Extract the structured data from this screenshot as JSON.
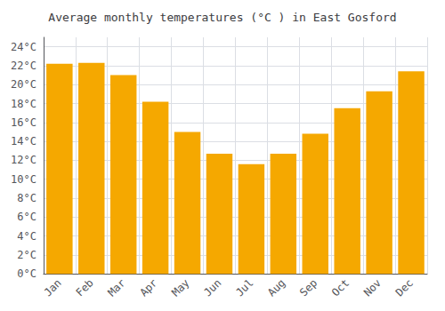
{
  "chart_data": {
    "type": "bar",
    "title": "Average monthly temperatures (°C ) in East Gosford",
    "categories": [
      "Jan",
      "Feb",
      "Mar",
      "Apr",
      "May",
      "Jun",
      "Jul",
      "Aug",
      "Sep",
      "Oct",
      "Nov",
      "Dec"
    ],
    "values": [
      22.2,
      22.3,
      21.0,
      18.2,
      15.0,
      12.7,
      11.6,
      12.7,
      14.8,
      17.5,
      19.3,
      21.4
    ],
    "color": "#F5A800",
    "ylim": [
      0,
      25
    ],
    "yticks": [
      {
        "value": 0,
        "label": "0°C"
      },
      {
        "value": 2,
        "label": "2°C"
      },
      {
        "value": 4,
        "label": "4°C"
      },
      {
        "value": 6,
        "label": "6°C"
      },
      {
        "value": 8,
        "label": "8°C"
      },
      {
        "value": 10,
        "label": "10°C"
      },
      {
        "value": 12,
        "label": "12°C"
      },
      {
        "value": 14,
        "label": "14°C"
      },
      {
        "value": 16,
        "label": "16°C"
      },
      {
        "value": 18,
        "label": "18°C"
      },
      {
        "value": 20,
        "label": "20°C"
      },
      {
        "value": 22,
        "label": "22°C"
      },
      {
        "value": 24,
        "label": "24°C"
      }
    ],
    "grid": true
  }
}
